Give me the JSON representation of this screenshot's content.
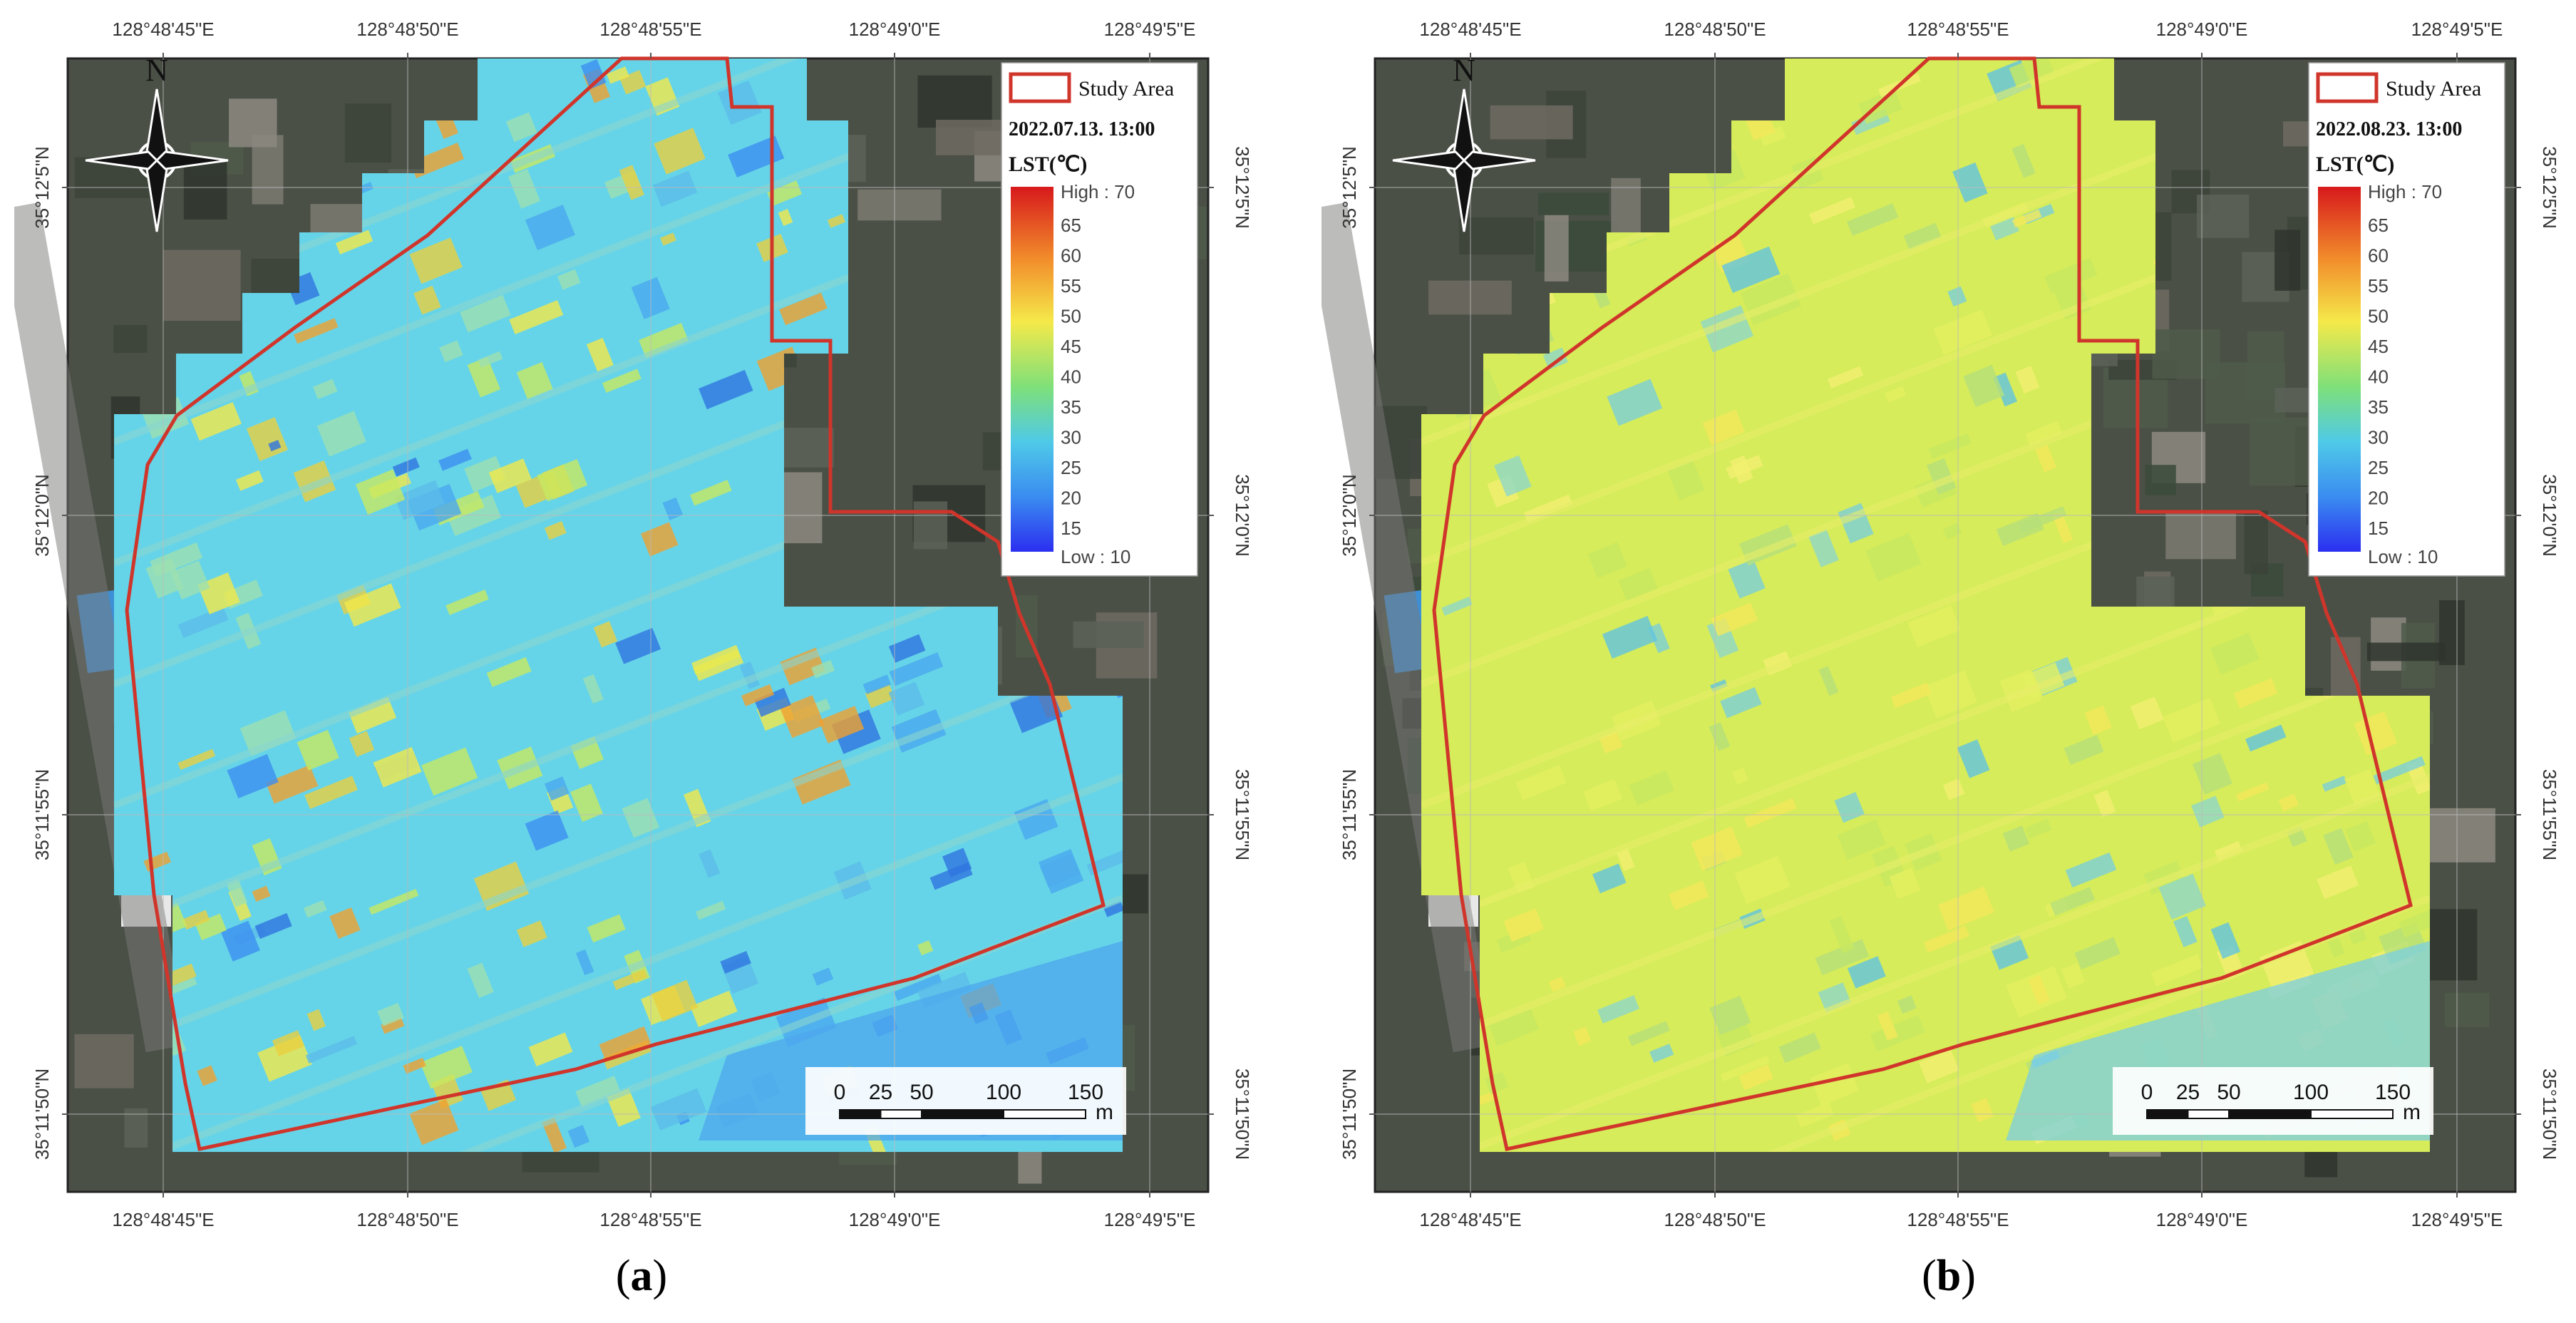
{
  "panels": [
    {
      "id": "a",
      "caption_letter": "a",
      "legend": {
        "study_area_label": "Study Area",
        "timestamp": "2022.07.13. 13:00",
        "lst_title": "LST(℃)",
        "high_label": "High : 70",
        "low_label": "Low : 10",
        "ticks": [
          "65",
          "60",
          "55",
          "50",
          "45",
          "40",
          "35",
          "30",
          "25",
          "20",
          "15"
        ]
      },
      "lst_mean_c": 38,
      "dominant_color": "#66d4e8"
    },
    {
      "id": "b",
      "caption_letter": "b",
      "legend": {
        "study_area_label": "Study Area",
        "timestamp": "2022.08.23. 13:00",
        "lst_title": "LST(℃)",
        "high_label": "High : 70",
        "low_label": "Low : 10",
        "ticks": [
          "65",
          "60",
          "55",
          "50",
          "45",
          "40",
          "35",
          "30",
          "25",
          "20",
          "15"
        ]
      },
      "lst_mean_c": 44,
      "dominant_color": "#d6ec5a"
    }
  ],
  "north_label": "N",
  "lon_ticks": [
    "128°48'45\"E",
    "128°48'50\"E",
    "128°48'55\"E",
    "128°49'0\"E",
    "128°49'5\"E"
  ],
  "lat_ticks": [
    "35°12'5\"N",
    "35°12'0\"N",
    "35°11'55\"N",
    "35°11'50\"N"
  ],
  "scale_bar": {
    "ticks": [
      "0",
      "25",
      "50",
      "100",
      "150"
    ],
    "unit": "m"
  },
  "colors": {
    "study_area_outline": "#d0352b",
    "ramp_high": "#d7191c",
    "ramp_low": "#2b3cf0",
    "imagery": "#4a5046"
  }
}
